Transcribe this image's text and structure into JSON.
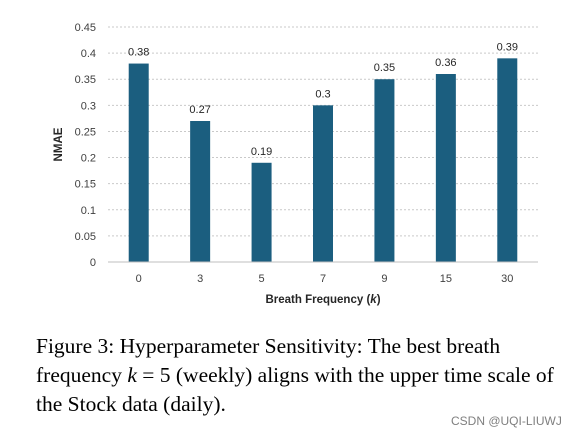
{
  "chart_data": {
    "type": "bar",
    "categories": [
      "0",
      "3",
      "5",
      "7",
      "9",
      "15",
      "30"
    ],
    "values": [
      0.38,
      0.27,
      0.19,
      0.3,
      0.35,
      0.36,
      0.39
    ],
    "data_labels": [
      "0.38",
      "0.27",
      "0.19",
      "0.3",
      "0.35",
      "0.36",
      "0.39"
    ],
    "title": "",
    "xlabel_prefix": "Breath Frequency (",
    "xlabel_var": "k",
    "xlabel_suffix": ")",
    "ylabel": "NMAE",
    "ylim": [
      0,
      0.45
    ],
    "yticks": [
      0,
      0.05,
      0.1,
      0.15,
      0.2,
      0.25,
      0.3,
      0.35,
      0.4,
      0.45
    ],
    "ytick_labels": [
      "0",
      "0.05",
      "0.1",
      "0.15",
      "0.2",
      "0.25",
      "0.3",
      "0.35",
      "0.4",
      "0.45"
    ],
    "grid": true,
    "legend": "none",
    "bar_color": "#1b5e7f"
  },
  "caption": {
    "label": "Figure 3:",
    "text_before_math": " Hyperparameter Sensitivity: The best breath frequency ",
    "math_var": "k",
    "math_op": " = 5",
    "text_after_math": " (weekly) aligns with the upper time scale of the Stock data (daily)."
  },
  "watermark": "CSDN @UQI-LIUWJ"
}
